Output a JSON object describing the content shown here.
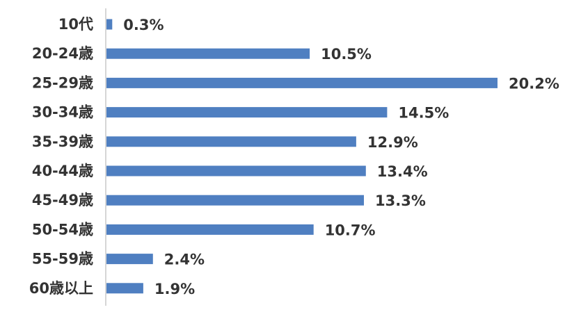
{
  "chart_data": {
    "type": "bar",
    "orientation": "horizontal",
    "categories": [
      "10代",
      "20-24歳",
      "25-29歳",
      "30-34歳",
      "35-39歳",
      "40-44歳",
      "45-49歳",
      "50-54歳",
      "55-59歳",
      "60歳以上"
    ],
    "values": [
      0.3,
      10.5,
      20.2,
      14.5,
      12.9,
      13.4,
      13.3,
      10.7,
      2.4,
      1.9
    ],
    "value_labels": [
      "0.3%",
      "10.5%",
      "20.2%",
      "14.5%",
      "12.9%",
      "13.4%",
      "13.3%",
      "10.7%",
      "2.4%",
      "1.9%"
    ],
    "unit": "%",
    "title": "",
    "xlabel": "",
    "ylabel": "",
    "xlim": [
      0,
      20.2
    ],
    "grid": false,
    "legend": "none",
    "bar_color": "#4F7FC1"
  }
}
